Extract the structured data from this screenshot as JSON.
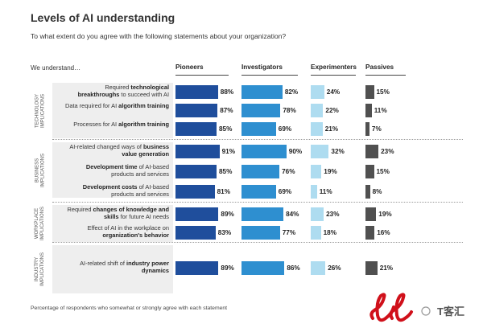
{
  "title": "Levels of AI understanding",
  "subtitle": "To what extent do you agree with the following statements about your organization?",
  "intro": "We understand…",
  "footnote": "Percentage of respondents who somewhat or strongly agree with each statement",
  "colors": {
    "Pioneers": "#1f4e9c",
    "Investigators": "#2e8fd0",
    "Experimenters": "#aedcf0",
    "Passives": "#505050"
  },
  "watermark": "T客汇",
  "chart_data": {
    "type": "bar",
    "title": "Levels of AI understanding",
    "categories_header": "We understand…",
    "series_names": [
      "Pioneers",
      "Investigators",
      "Experimenters",
      "Passives"
    ],
    "xlim": [
      0,
      100
    ],
    "groups": [
      {
        "label": "TECHNOLOGY IMPLICATIONS",
        "rows": [
          {
            "parts": [
              {
                "t": "Required ",
                "b": false
              },
              {
                "t": "technological breakthroughs",
                "b": true
              },
              {
                "t": " to succeed with AI",
                "b": false
              }
            ],
            "values": [
              88,
              82,
              24,
              15
            ]
          },
          {
            "parts": [
              {
                "t": "Data required for AI ",
                "b": false
              },
              {
                "t": "algorithm training",
                "b": true
              }
            ],
            "values": [
              87,
              78,
              22,
              11
            ]
          },
          {
            "parts": [
              {
                "t": "Processes for AI ",
                "b": false
              },
              {
                "t": "algorithm training",
                "b": true
              }
            ],
            "values": [
              85,
              69,
              21,
              7
            ]
          }
        ]
      },
      {
        "label": "BUSINESS IMPLICATIONS",
        "rows": [
          {
            "parts": [
              {
                "t": "AI-related changed ways of ",
                "b": false
              },
              {
                "t": "business value generation",
                "b": true
              }
            ],
            "values": [
              91,
              90,
              32,
              23
            ]
          },
          {
            "parts": [
              {
                "t": "Development time",
                "b": true
              },
              {
                "t": " of AI-based products and services",
                "b": false
              }
            ],
            "values": [
              85,
              76,
              19,
              15
            ]
          },
          {
            "parts": [
              {
                "t": "Development costs",
                "b": true
              },
              {
                "t": " of AI-based products and services",
                "b": false
              }
            ],
            "values": [
              81,
              69,
              11,
              8
            ]
          }
        ]
      },
      {
        "label": "WORKPLACE IMPLICATIONS",
        "rows": [
          {
            "parts": [
              {
                "t": "Required ",
                "b": false
              },
              {
                "t": "changes of knowledge and skills",
                "b": true
              },
              {
                "t": " for future AI needs",
                "b": false
              }
            ],
            "values": [
              89,
              84,
              23,
              19
            ]
          },
          {
            "parts": [
              {
                "t": "Effect of AI in the workplace on ",
                "b": false
              },
              {
                "t": "organization's behavior",
                "b": true
              }
            ],
            "values": [
              83,
              77,
              18,
              16
            ]
          }
        ]
      },
      {
        "label": "INDUSTRY IMPLICATIONS",
        "rows": [
          {
            "parts": [
              {
                "t": "AI-related shift of ",
                "b": false
              },
              {
                "t": "industry power dynamics",
                "b": true
              }
            ],
            "values": [
              89,
              86,
              26,
              21
            ]
          }
        ]
      }
    ]
  }
}
